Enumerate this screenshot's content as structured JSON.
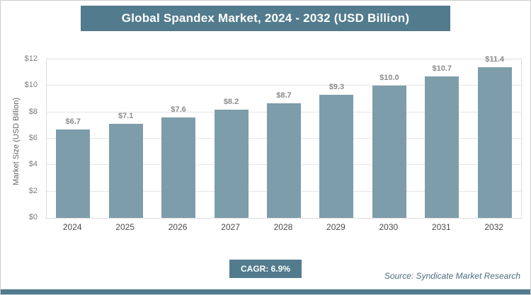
{
  "header": {
    "title": "Global Spandex Market, 2024 - 2032 (USD Billion)"
  },
  "chart_data": {
    "type": "bar",
    "title": "Global Spandex Market, 2024 - 2032 (USD Billion)",
    "categories": [
      "2024",
      "2025",
      "2026",
      "2027",
      "2028",
      "2029",
      "2030",
      "2031",
      "2032"
    ],
    "values": [
      6.7,
      7.1,
      7.6,
      8.2,
      8.7,
      9.3,
      10.0,
      10.7,
      11.4
    ],
    "bar_labels": [
      "$6.7",
      "$7.1",
      "$7.6",
      "$8.2",
      "$8.7",
      "$9.3",
      "$10.0",
      "$10.7",
      "$11.4"
    ],
    "xlabel": "",
    "ylabel": "Market Size (USD Billion)",
    "ylim": [
      0,
      12
    ],
    "ytick_step": 2,
    "ytick_labels": [
      "$0",
      "$2",
      "$4",
      "$6",
      "$8",
      "$10",
      "$12"
    ],
    "grid": "horizontal",
    "legend": "none",
    "bar_color": "#7e9dab"
  },
  "footer": {
    "cagr_label": "CAGR: 6.9%",
    "source": "Source: Syndicate Market Research"
  },
  "colors": {
    "accent": "#527b8d",
    "bar": "#7e9dab",
    "value_label": "#8c8c8c",
    "grid": "#e6e6e6"
  }
}
